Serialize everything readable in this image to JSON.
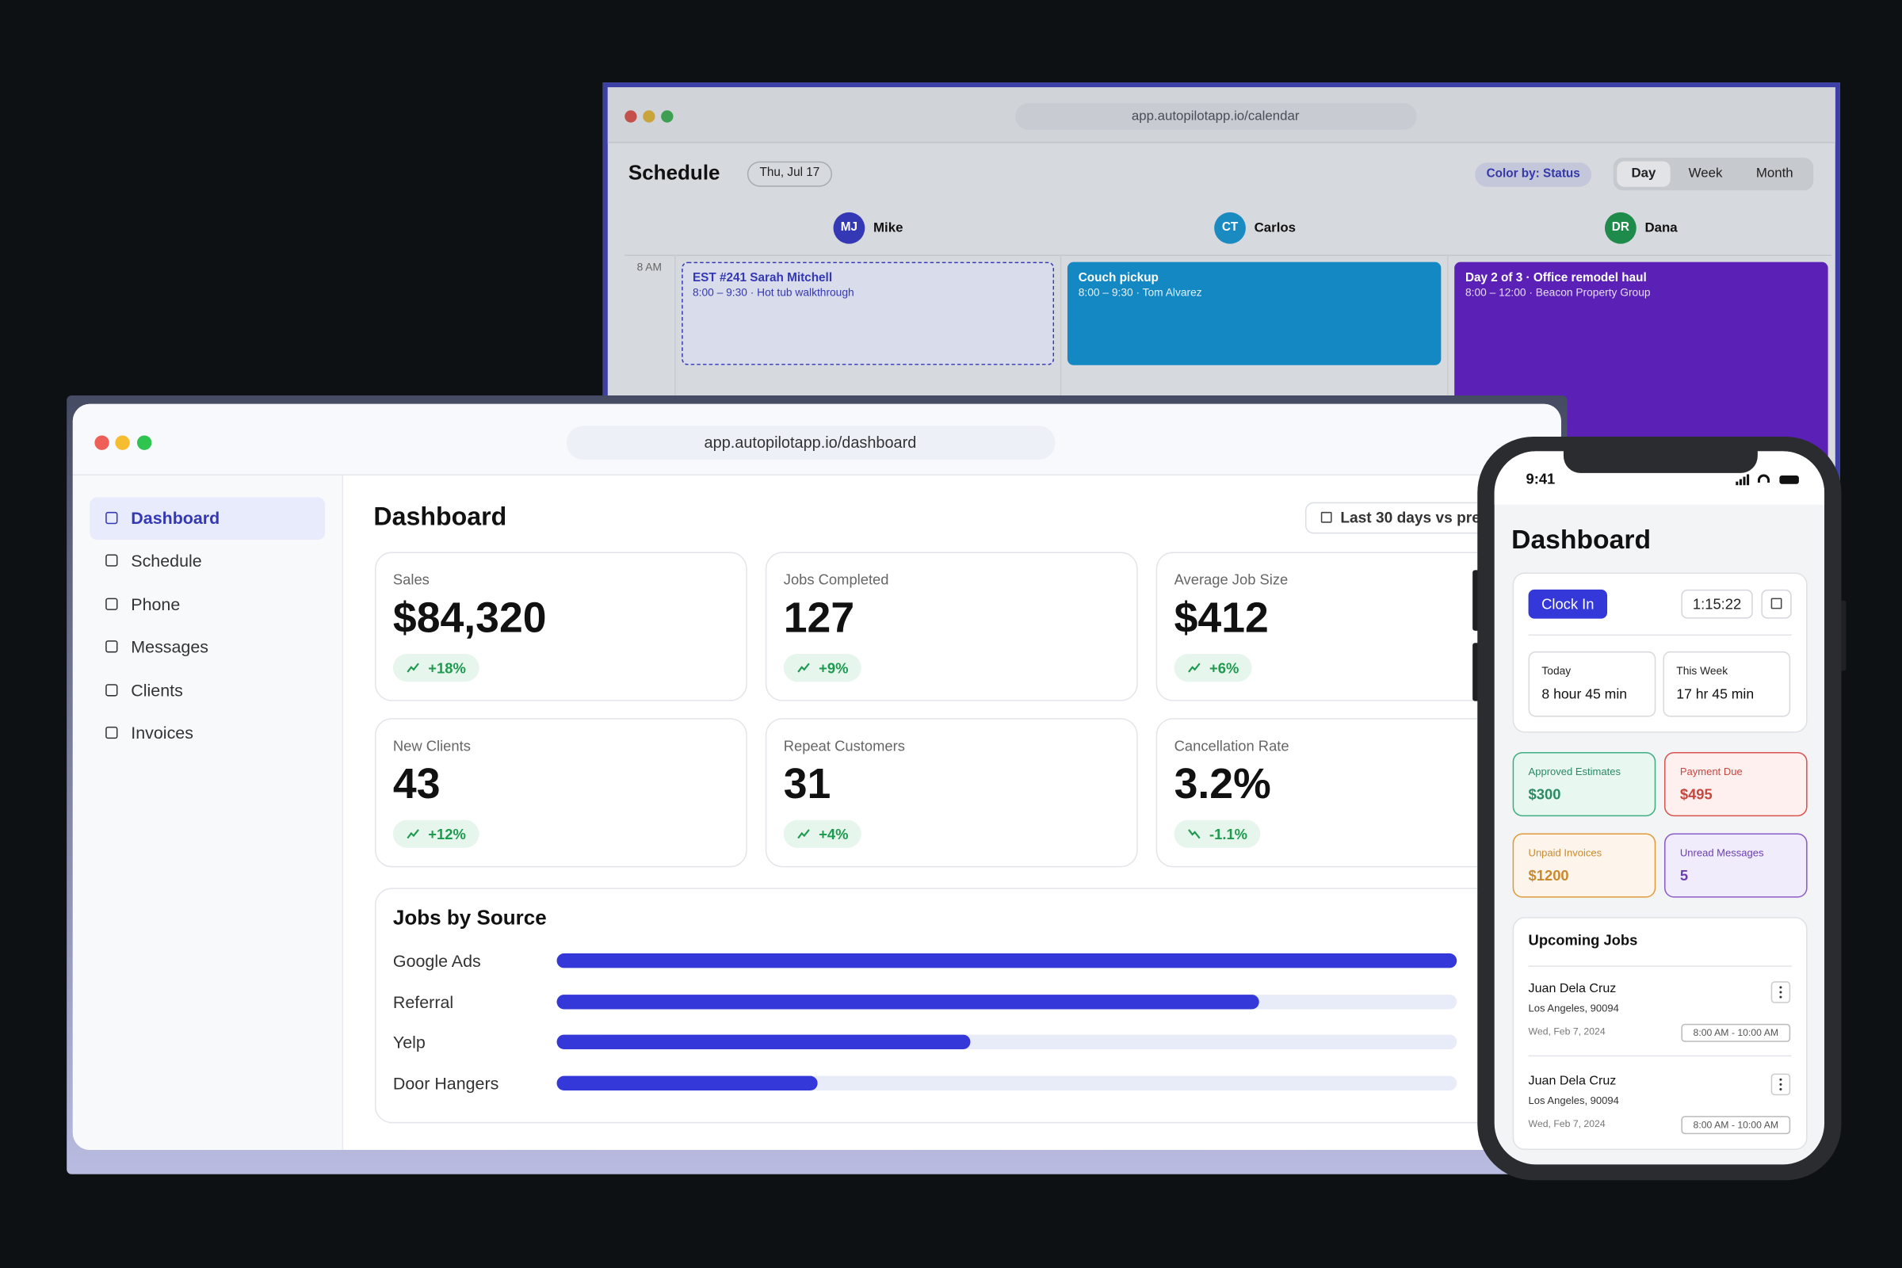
{
  "calendar_window": {
    "url": "app.autopilotapp.io/calendar",
    "title": "Schedule",
    "date": "Thu, Jul 17",
    "color_by": "Color by: Status",
    "views": [
      "Day",
      "Week",
      "Month"
    ],
    "staff": [
      {
        "initials": "MJ",
        "name": "Mike"
      },
      {
        "initials": "CT",
        "name": "Carlos"
      },
      {
        "initials": "DR",
        "name": "Dana"
      }
    ],
    "time_label": "8 AM",
    "events": [
      {
        "title": "EST #241 Sarah Mitchell",
        "detail": "8:00 – 9:30 · Hot tub walkthrough"
      },
      {
        "title": "Couch pickup",
        "detail": "8:00 – 9:30 · Tom Alvarez"
      },
      {
        "title": "Day 2 of 3 · Office remodel haul",
        "detail": "8:00 – 12:00 · Beacon Property Group"
      }
    ]
  },
  "dashboard_window": {
    "url": "app.autopilotapp.io/dashboard",
    "nav": [
      "Dashboard",
      "Schedule",
      "Phone",
      "Messages",
      "Clients",
      "Invoices"
    ],
    "title": "Dashboard",
    "date_range": "Last 30 days vs pre",
    "kpis": [
      {
        "label": "Sales",
        "value": "$84,320",
        "change": "+18%"
      },
      {
        "label": "Jobs Completed",
        "value": "127",
        "change": "+9%"
      },
      {
        "label": "Average Job Size",
        "value": "$412",
        "change": "+6%"
      },
      {
        "label": "New Clients",
        "value": "43",
        "change": "+12%"
      },
      {
        "label": "Repeat Customers",
        "value": "31",
        "change": "+4%"
      },
      {
        "label": "Cancellation Rate",
        "value": "3.2%",
        "change": "-1.1%"
      }
    ],
    "jobs_by_source": {
      "title": "Jobs by Source",
      "categories": [
        "Google Ads",
        "Referral",
        "Yelp",
        "Door Hangers"
      ],
      "values": [
        100,
        78,
        46,
        29
      ]
    }
  },
  "phone": {
    "time": "9:41",
    "title": "Dashboard",
    "clock_in": "Clock In",
    "timer": "1:15:22",
    "hours": [
      {
        "label": "Today",
        "value": "8 hour 45 min"
      },
      {
        "label": "This Week",
        "value": "17 hr 45 min"
      }
    ],
    "tiles": [
      {
        "label": "Approved Estimates",
        "value": "$300"
      },
      {
        "label": "Payment Due",
        "value": "$495"
      },
      {
        "label": "Unpaid Invoices",
        "value": "$1200"
      },
      {
        "label": "Unread Messages",
        "value": "5"
      }
    ],
    "upcoming": {
      "title": "Upcoming Jobs",
      "jobs": [
        {
          "name": "Juan Dela Cruz",
          "address": "Los Angeles, 90094",
          "date": "Wed, Feb 7, 2024",
          "time": "8:00 AM - 10:00 AM"
        },
        {
          "name": "Juan Dela Cruz",
          "address": "Los Angeles, 90094",
          "date": "Wed, Feb 7, 2024",
          "time": "8:00 AM - 10:00 AM"
        }
      ]
    }
  }
}
